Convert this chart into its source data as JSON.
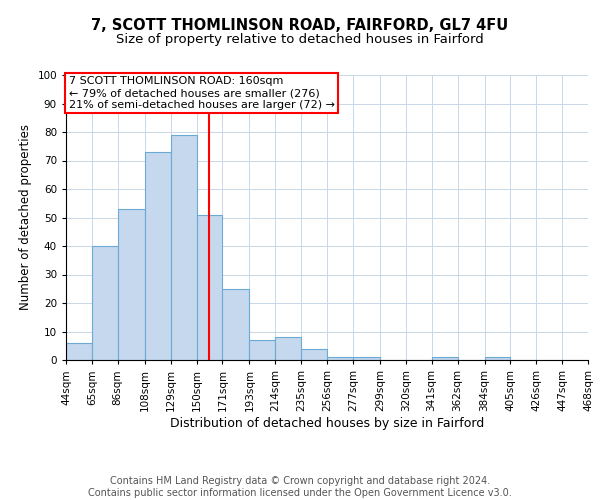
{
  "title": "7, SCOTT THOMLINSON ROAD, FAIRFORD, GL7 4FU",
  "subtitle": "Size of property relative to detached houses in Fairford",
  "xlabel": "Distribution of detached houses by size in Fairford",
  "ylabel": "Number of detached properties",
  "bin_edges": [
    44,
    65,
    86,
    108,
    129,
    150,
    171,
    193,
    214,
    235,
    256,
    277,
    299,
    320,
    341,
    362,
    384,
    405,
    426,
    447,
    468
  ],
  "bar_heights": [
    6,
    40,
    53,
    73,
    79,
    51,
    25,
    7,
    8,
    4,
    1,
    1,
    0,
    0,
    1,
    0,
    1,
    0,
    0,
    0
  ],
  "bar_color": "#c5d8ee",
  "bar_edge_color": "#6aaad4",
  "property_line_x": 160,
  "annotation_title": "7 SCOTT THOMLINSON ROAD: 160sqm",
  "annotation_line1": "← 79% of detached houses are smaller (276)",
  "annotation_line2": "21% of semi-detached houses are larger (72) →",
  "annotation_box_color": "white",
  "annotation_box_edge": "red",
  "vline_color": "red",
  "ylim": [
    0,
    100
  ],
  "xlim": [
    44,
    468
  ],
  "tick_labels": [
    "44sqm",
    "65sqm",
    "86sqm",
    "108sqm",
    "129sqm",
    "150sqm",
    "171sqm",
    "193sqm",
    "214sqm",
    "235sqm",
    "256sqm",
    "277sqm",
    "299sqm",
    "320sqm",
    "341sqm",
    "362sqm",
    "384sqm",
    "405sqm",
    "426sqm",
    "447sqm",
    "468sqm"
  ],
  "footnote1": "Contains HM Land Registry data © Crown copyright and database right 2024.",
  "footnote2": "Contains public sector information licensed under the Open Government Licence v3.0.",
  "title_fontsize": 10.5,
  "subtitle_fontsize": 9.5,
  "xlabel_fontsize": 9,
  "ylabel_fontsize": 8.5,
  "tick_fontsize": 7.5,
  "annot_fontsize": 8,
  "footnote_fontsize": 7
}
